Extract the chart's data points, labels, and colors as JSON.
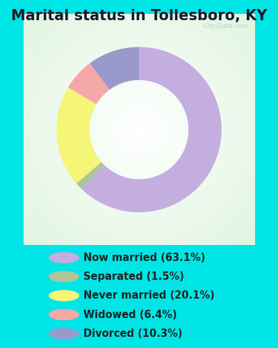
{
  "title": "Marital status in Tollesboro, KY",
  "slices": [
    63.1,
    1.5,
    20.1,
    6.4,
    10.3
  ],
  "labels": [
    "Now married (63.1%)",
    "Separated (1.5%)",
    "Never married (20.1%)",
    "Widowed (6.4%)",
    "Divorced (10.3%)"
  ],
  "colors": [
    "#c4aee0",
    "#afc49a",
    "#f5f577",
    "#f5a8a8",
    "#9999cc"
  ],
  "bg_cyan": "#00e5e5",
  "donut_hole": 0.6,
  "title_fontsize": 15,
  "legend_fontsize": 10.5,
  "startangle": 90,
  "watermark": "City-Data.com"
}
